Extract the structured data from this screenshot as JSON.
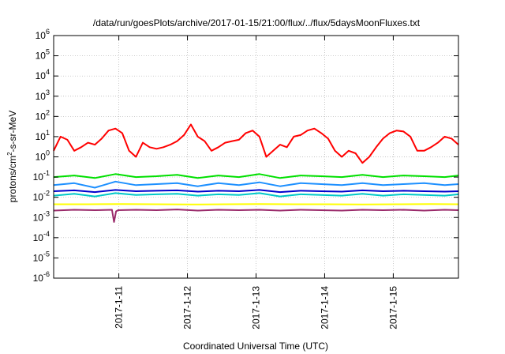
{
  "chart_data": {
    "type": "line",
    "title": "/data/run/goesPlots/archive/2017-01-15/21:00/flux/../flux/5daysMoonFluxes.txt",
    "xlabel": "Coordinated Universal Time (UTC)",
    "ylabel_parts": {
      "pre": "protons/cm",
      "sup": "2",
      "post": "-s-sr-MeV"
    },
    "yscale": "log",
    "ylim_exp": [
      -6,
      6
    ],
    "y_ticks": [
      {
        "base": "10",
        "exp": "6"
      },
      {
        "base": "10",
        "exp": "5"
      },
      {
        "base": "10",
        "exp": "4"
      },
      {
        "base": "10",
        "exp": "3"
      },
      {
        "base": "10",
        "exp": "2"
      },
      {
        "base": "10",
        "exp": "1"
      },
      {
        "base": "10",
        "exp": "0"
      },
      {
        "base": "10",
        "exp": "-1"
      },
      {
        "base": "10",
        "exp": "-2"
      },
      {
        "base": "10",
        "exp": "-3"
      },
      {
        "base": "10",
        "exp": "-4"
      },
      {
        "base": "10",
        "exp": "-5"
      },
      {
        "base": "10",
        "exp": "-6"
      }
    ],
    "xlim_days": [
      0,
      5.9
    ],
    "x_ticks": [
      {
        "label": "2017-1-11",
        "day": 0.95
      },
      {
        "label": "2017-1-12",
        "day": 1.95
      },
      {
        "label": "2017-1-13",
        "day": 2.95
      },
      {
        "label": "2017-1-14",
        "day": 3.95
      },
      {
        "label": "2017-1-15",
        "day": 4.95
      }
    ],
    "grid": true,
    "series": [
      {
        "color": "#ff0000",
        "x": [
          0.0,
          0.1,
          0.2,
          0.3,
          0.4,
          0.5,
          0.6,
          0.7,
          0.8,
          0.9,
          1.0,
          1.1,
          1.2,
          1.3,
          1.4,
          1.5,
          1.6,
          1.7,
          1.8,
          1.9,
          2.0,
          2.1,
          2.2,
          2.3,
          2.4,
          2.5,
          2.6,
          2.7,
          2.8,
          2.9,
          3.0,
          3.1,
          3.2,
          3.3,
          3.4,
          3.5,
          3.6,
          3.7,
          3.8,
          3.9,
          4.0,
          4.1,
          4.2,
          4.3,
          4.4,
          4.5,
          4.6,
          4.7,
          4.8,
          4.9,
          5.0,
          5.1,
          5.2,
          5.3,
          5.4,
          5.5,
          5.6,
          5.7,
          5.8,
          5.9
        ],
        "y": [
          2,
          10,
          7,
          2,
          3,
          5,
          4,
          8,
          20,
          25,
          15,
          2,
          1,
          5,
          3,
          2.5,
          3,
          4,
          6,
          12,
          40,
          10,
          6,
          2,
          3,
          5,
          6,
          7,
          15,
          20,
          10,
          1,
          2,
          4,
          3,
          10,
          12,
          20,
          25,
          15,
          8,
          2,
          1,
          2,
          1.5,
          0.5,
          1,
          3,
          8,
          15,
          20,
          18,
          10,
          2,
          2,
          3,
          5,
          10,
          8,
          4
        ]
      },
      {
        "color": "#00e000",
        "x": [
          0.0,
          0.3,
          0.6,
          0.9,
          1.2,
          1.5,
          1.8,
          2.1,
          2.4,
          2.7,
          3.0,
          3.3,
          3.6,
          3.9,
          4.2,
          4.5,
          4.8,
          5.1,
          5.4,
          5.7,
          5.9
        ],
        "y": [
          0.1,
          0.12,
          0.09,
          0.14,
          0.1,
          0.11,
          0.13,
          0.09,
          0.12,
          0.1,
          0.14,
          0.09,
          0.12,
          0.11,
          0.1,
          0.13,
          0.1,
          0.12,
          0.11,
          0.1,
          0.12
        ]
      },
      {
        "color": "#1e90ff",
        "x": [
          0.0,
          0.3,
          0.6,
          0.9,
          1.2,
          1.5,
          1.8,
          2.1,
          2.4,
          2.7,
          3.0,
          3.3,
          3.6,
          3.9,
          4.2,
          4.5,
          4.8,
          5.1,
          5.4,
          5.7,
          5.9
        ],
        "y": [
          0.04,
          0.05,
          0.03,
          0.06,
          0.04,
          0.045,
          0.05,
          0.035,
          0.05,
          0.04,
          0.055,
          0.035,
          0.05,
          0.045,
          0.04,
          0.05,
          0.04,
          0.045,
          0.05,
          0.04,
          0.045
        ]
      },
      {
        "color": "#00c8c8",
        "x": [
          0.0,
          0.3,
          0.6,
          0.9,
          1.2,
          1.5,
          1.8,
          2.1,
          2.4,
          2.7,
          3.0,
          3.3,
          3.6,
          3.9,
          4.2,
          4.5,
          4.8,
          5.1,
          5.4,
          5.7,
          5.9
        ],
        "y": [
          0.012,
          0.015,
          0.011,
          0.016,
          0.013,
          0.014,
          0.015,
          0.012,
          0.014,
          0.013,
          0.016,
          0.011,
          0.014,
          0.013,
          0.012,
          0.015,
          0.012,
          0.014,
          0.013,
          0.012,
          0.014
        ]
      },
      {
        "color": "#0000cc",
        "x": [
          0.0,
          0.3,
          0.6,
          0.9,
          1.2,
          1.5,
          1.8,
          2.1,
          2.4,
          2.7,
          3.0,
          3.3,
          3.6,
          3.9,
          4.2,
          4.5,
          4.8,
          5.1,
          5.4,
          5.7,
          5.9
        ],
        "y": [
          0.02,
          0.022,
          0.018,
          0.023,
          0.02,
          0.021,
          0.022,
          0.019,
          0.021,
          0.02,
          0.023,
          0.018,
          0.021,
          0.02,
          0.019,
          0.022,
          0.02,
          0.021,
          0.02,
          0.019,
          0.02
        ]
      },
      {
        "color": "#ffff00",
        "x": [
          0.0,
          0.5,
          1.0,
          1.5,
          2.0,
          2.5,
          3.0,
          3.5,
          4.0,
          4.5,
          5.0,
          5.5,
          5.9
        ],
        "y": [
          0.0045,
          0.0045,
          0.0046,
          0.0045,
          0.0044,
          0.0045,
          0.0046,
          0.0045,
          0.0045,
          0.0044,
          0.0045,
          0.0046,
          0.0045
        ]
      },
      {
        "color": "#9a2a6a",
        "x": [
          0.0,
          0.3,
          0.6,
          0.85,
          0.88,
          0.91,
          0.94,
          1.2,
          1.5,
          1.8,
          2.1,
          2.4,
          2.7,
          3.0,
          3.3,
          3.6,
          3.9,
          4.2,
          4.5,
          4.8,
          5.1,
          5.4,
          5.7,
          5.9
        ],
        "y": [
          0.0022,
          0.0024,
          0.0023,
          0.0024,
          0.0006,
          0.002,
          0.0023,
          0.0024,
          0.0023,
          0.0025,
          0.0022,
          0.0024,
          0.0023,
          0.0024,
          0.0022,
          0.0024,
          0.0023,
          0.0022,
          0.0024,
          0.0023,
          0.0024,
          0.0022,
          0.0024,
          0.0023
        ]
      }
    ]
  }
}
